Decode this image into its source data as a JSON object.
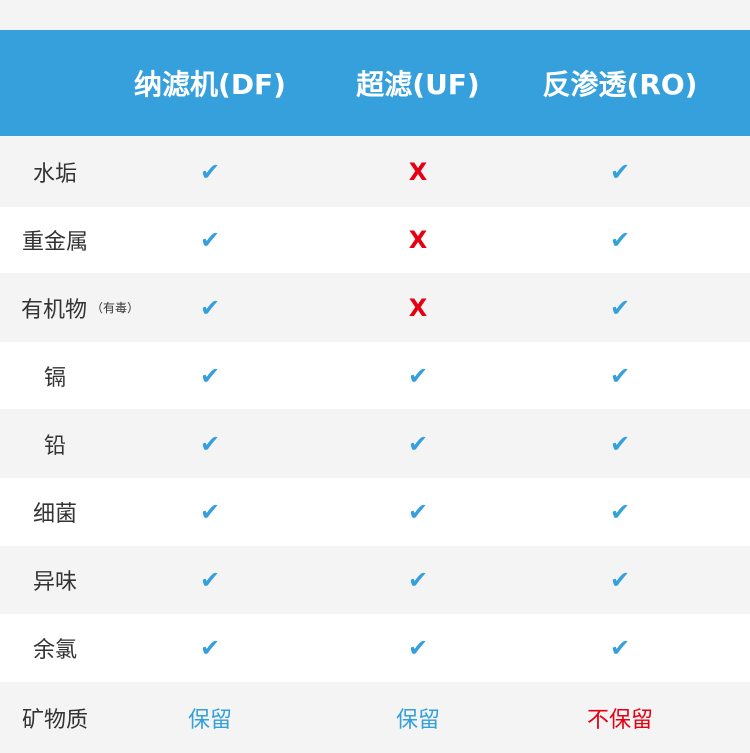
{
  "table": {
    "columns": [
      "纳滤机(DF)",
      "超滤(UF)",
      "反渗透(RO)"
    ],
    "rows": [
      {
        "label": "水垢",
        "cells": [
          "✔",
          "X",
          "✔"
        ],
        "colors": [
          "#35a0dc",
          "#e60012",
          "#35a0dc"
        ]
      },
      {
        "label": "重金属",
        "cells": [
          "✔",
          "X",
          "✔"
        ],
        "colors": [
          "#35a0dc",
          "#e60012",
          "#35a0dc"
        ]
      },
      {
        "label": "有机物",
        "note": "（有毒）",
        "cells": [
          "✔",
          "X",
          "✔"
        ],
        "colors": [
          "#35a0dc",
          "#e60012",
          "#35a0dc"
        ]
      },
      {
        "label": "镉",
        "cells": [
          "✔",
          "✔",
          "✔"
        ],
        "colors": [
          "#35a0dc",
          "#35a0dc",
          "#35a0dc"
        ]
      },
      {
        "label": "铅",
        "cells": [
          "✔",
          "✔",
          "✔"
        ],
        "colors": [
          "#35a0dc",
          "#35a0dc",
          "#35a0dc"
        ]
      },
      {
        "label": "细菌",
        "cells": [
          "✔",
          "✔",
          "✔"
        ],
        "colors": [
          "#35a0dc",
          "#35a0dc",
          "#35a0dc"
        ]
      },
      {
        "label": "异味",
        "cells": [
          "✔",
          "✔",
          "✔"
        ],
        "colors": [
          "#35a0dc",
          "#35a0dc",
          "#35a0dc"
        ]
      },
      {
        "label": "余氯",
        "cells": [
          "✔",
          "✔",
          "✔"
        ],
        "colors": [
          "#35a0dc",
          "#35a0dc",
          "#35a0dc"
        ]
      },
      {
        "label": "矿物质",
        "cells": [
          "保留",
          "保留",
          "不保留"
        ],
        "colors": [
          "#35a0dc",
          "#35a0dc",
          "#e60012"
        ]
      }
    ]
  }
}
